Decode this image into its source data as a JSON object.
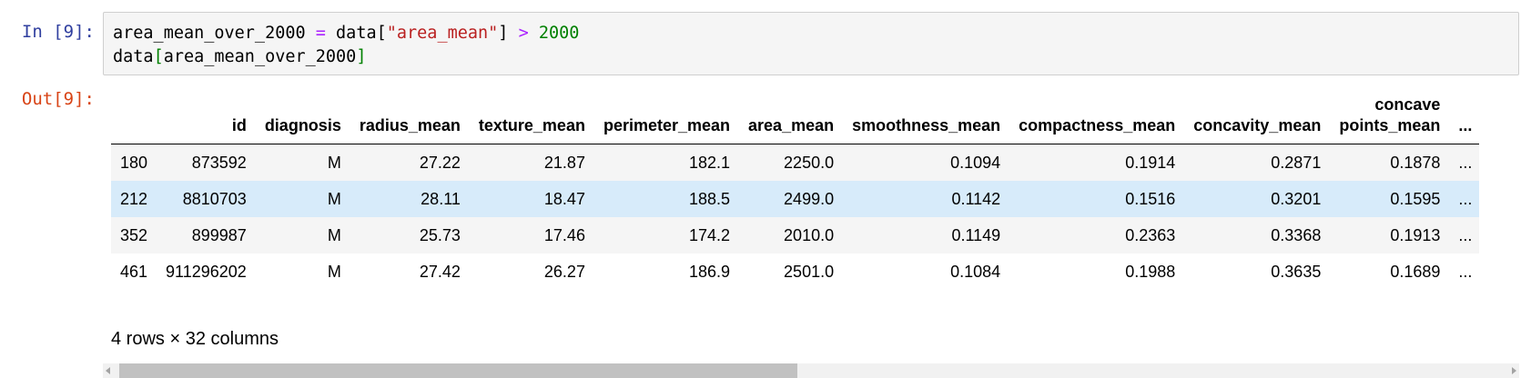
{
  "cell": {
    "in_prompt": "In [9]:",
    "out_prompt": "Out[9]:",
    "code": {
      "line1": {
        "var": "area_mean_over_2000",
        "eq": " = ",
        "obj": "data[",
        "key": "\"area_mean\"",
        "close": "] ",
        "gt": ">",
        "num": " 2000"
      },
      "line2": {
        "obj": "data",
        "open": "[",
        "var": "area_mean_over_2000",
        "close": "]"
      }
    }
  },
  "table": {
    "columns": [
      "",
      "id",
      "diagnosis",
      "radius_mean",
      "texture_mean",
      "perimeter_mean",
      "area_mean",
      "smoothness_mean",
      "compactness_mean",
      "concavity_mean",
      "concave\npoints_mean",
      "..."
    ],
    "rows": [
      [
        "180",
        "873592",
        "M",
        "27.22",
        "21.87",
        "182.1",
        "2250.0",
        "0.1094",
        "0.1914",
        "0.2871",
        "0.1878",
        "..."
      ],
      [
        "212",
        "8810703",
        "M",
        "28.11",
        "18.47",
        "188.5",
        "2499.0",
        "0.1142",
        "0.1516",
        "0.3201",
        "0.1595",
        "..."
      ],
      [
        "352",
        "899987",
        "M",
        "25.73",
        "17.46",
        "174.2",
        "2010.0",
        "0.1149",
        "0.2363",
        "0.3368",
        "0.1913",
        "..."
      ],
      [
        "461",
        "911296202",
        "M",
        "27.42",
        "26.27",
        "186.9",
        "2501.0",
        "0.1084",
        "0.1988",
        "0.3635",
        "0.1689",
        "..."
      ]
    ],
    "highlighted_row": 1
  },
  "shape_note": "4 rows × 32 columns",
  "scrollbar": {
    "position_fraction": 0.0,
    "visible_fraction": 0.49
  }
}
